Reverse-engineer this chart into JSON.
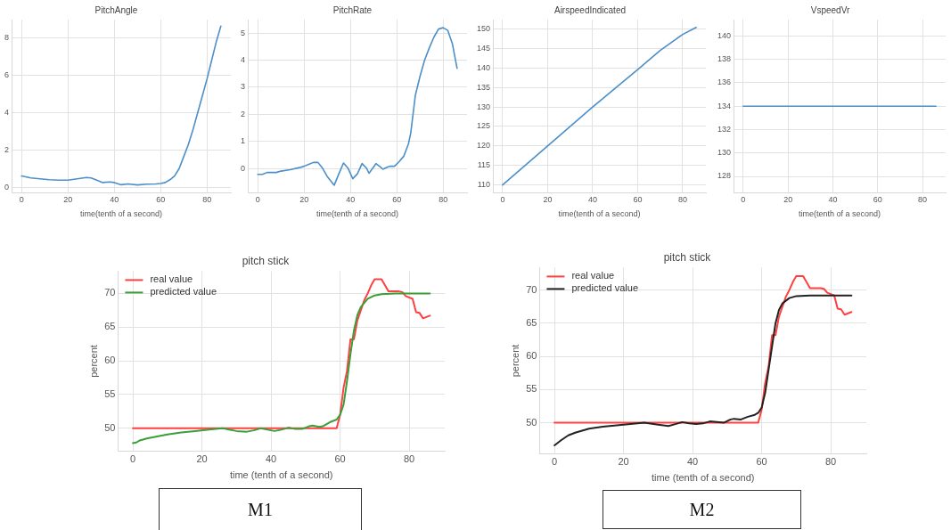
{
  "chart_data": [
    {
      "type": "line",
      "title": "PitchAngle",
      "xlabel": "time(tenth of a second)",
      "xlim": [
        -4.3,
        90.3
      ],
      "xticks": [
        0,
        20,
        40,
        60,
        80
      ],
      "ylim": [
        -0.3,
        9.0
      ],
      "yticks": [
        0,
        2,
        4,
        6,
        8
      ],
      "grid": true,
      "marker": "none",
      "line_style": "solid",
      "series": [
        {
          "color": "#4c8fc9",
          "x": [
            0,
            4,
            8,
            12,
            16,
            20,
            24,
            28,
            30,
            32,
            35,
            38,
            40,
            43,
            46,
            50,
            54,
            58,
            60,
            62,
            64,
            66,
            68,
            70,
            72,
            74,
            76,
            78,
            80,
            82,
            84,
            86
          ],
          "values": [
            0.6,
            0.5,
            0.45,
            0.4,
            0.38,
            0.38,
            0.45,
            0.52,
            0.5,
            0.4,
            0.25,
            0.28,
            0.25,
            0.13,
            0.17,
            0.12,
            0.16,
            0.17,
            0.2,
            0.25,
            0.4,
            0.6,
            1.0,
            1.65,
            2.3,
            3.1,
            4.0,
            4.9,
            5.8,
            6.8,
            7.8,
            8.65
          ]
        }
      ]
    },
    {
      "type": "line",
      "title": "PitchRate",
      "xlabel": "time(tenth of a second)",
      "xlim": [
        -4.3,
        90.3
      ],
      "xticks": [
        0,
        20,
        40,
        60,
        80
      ],
      "ylim": [
        -0.9,
        5.5
      ],
      "yticks": [
        0,
        1,
        2,
        3,
        4,
        5
      ],
      "grid": true,
      "marker": "none",
      "line_style": "solid",
      "series": [
        {
          "color": "#4c8fc9",
          "x": [
            0,
            2,
            4,
            6,
            8,
            10,
            14,
            18,
            20,
            22,
            24,
            26,
            28,
            30,
            33,
            35,
            37,
            39,
            41,
            43,
            45,
            47,
            48,
            50,
            51,
            53,
            54,
            56,
            57,
            59,
            61,
            63,
            65,
            66,
            67,
            68,
            70,
            72,
            74,
            76,
            78,
            80,
            82,
            84,
            86
          ],
          "values": [
            -0.22,
            -0.22,
            -0.15,
            -0.15,
            -0.15,
            -0.1,
            -0.05,
            0.03,
            0.08,
            0.15,
            0.22,
            0.22,
            0.0,
            -0.3,
            -0.62,
            -0.2,
            0.2,
            0.0,
            -0.38,
            -0.2,
            0.18,
            0.0,
            -0.18,
            0.05,
            0.18,
            0.05,
            -0.03,
            0.05,
            0.08,
            0.08,
            0.25,
            0.45,
            0.9,
            1.3,
            2.0,
            2.7,
            3.4,
            4.0,
            4.45,
            4.85,
            5.15,
            5.2,
            5.1,
            4.6,
            3.7
          ]
        }
      ]
    },
    {
      "type": "line",
      "title": "AirspeedIndicated",
      "xlabel": "time(tenth of a second)",
      "xlim": [
        -4.3,
        90.3
      ],
      "xticks": [
        0,
        20,
        40,
        60,
        80
      ],
      "ylim": [
        108,
        152.4
      ],
      "yticks": [
        110,
        115,
        120,
        125,
        130,
        135,
        140,
        145,
        150
      ],
      "grid": true,
      "marker": "none",
      "line_style": "solid",
      "series": [
        {
          "color": "#4c8fc9",
          "x": [
            0,
            20,
            40,
            60,
            70,
            80,
            86
          ],
          "values": [
            110,
            120,
            130,
            139.6,
            144.5,
            148.6,
            150.4
          ]
        }
      ]
    },
    {
      "type": "line",
      "title": "VspeedVr",
      "xlabel": "time(tenth of a second)",
      "xlim": [
        -4.3,
        90.3
      ],
      "xticks": [
        0,
        20,
        40,
        60,
        80
      ],
      "ylim": [
        126.6,
        141.4
      ],
      "yticks": [
        128,
        130,
        132,
        134,
        136,
        138,
        140
      ],
      "grid": true,
      "marker": "none",
      "line_style": "solid",
      "series": [
        {
          "color": "#4c8fc9",
          "x": [
            0,
            86
          ],
          "values": [
            134,
            134
          ]
        }
      ]
    },
    {
      "type": "line",
      "title": "pitch stick",
      "xlabel": "time (tenth of a second)",
      "ylabel": "percent",
      "xlim": [
        -4.3,
        90.3
      ],
      "xticks": [
        0,
        20,
        40,
        60,
        80
      ],
      "ylim": [
        46.6,
        73.3
      ],
      "yticks": [
        50,
        55,
        60,
        65,
        70
      ],
      "grid": true,
      "marker": "none",
      "line_style": "solid",
      "legend": "top left",
      "annotations": [
        "M1"
      ],
      "series": [
        {
          "name": "real value",
          "color": "#ff4040",
          "x": [
            0,
            59,
            60,
            61,
            62,
            63,
            64,
            65,
            66,
            67,
            68,
            69,
            70,
            72,
            74,
            77,
            78,
            79,
            81,
            82,
            83,
            84,
            86
          ],
          "values": [
            50,
            50,
            52,
            56,
            58.5,
            63.2,
            63.2,
            66,
            67.5,
            69,
            70,
            71.2,
            72.1,
            72.1,
            70.3,
            70.3,
            70.2,
            69.6,
            69.2,
            67.2,
            67.1,
            66.3,
            66.7
          ]
        },
        {
          "name": "predicted value",
          "color": "#3a9e3a",
          "x": [
            0,
            1,
            2,
            4,
            6,
            8,
            10,
            14,
            18,
            22,
            26,
            30,
            33,
            35,
            37,
            39,
            41,
            43,
            45,
            47,
            49,
            51,
            52,
            54,
            55,
            57,
            59,
            60,
            61,
            62,
            63,
            64,
            65,
            66,
            68,
            70,
            72,
            76,
            86
          ],
          "values": [
            47.8,
            47.9,
            48.2,
            48.5,
            48.7,
            48.9,
            49.1,
            49.4,
            49.6,
            49.8,
            50.0,
            49.6,
            49.5,
            49.7,
            50.0,
            49.8,
            49.6,
            49.8,
            50.1,
            49.9,
            49.9,
            50.3,
            50.4,
            50.2,
            50.3,
            50.9,
            51.3,
            52,
            53.5,
            57,
            61,
            64.5,
            66.8,
            68,
            69.2,
            69.7,
            69.9,
            70,
            70
          ]
        }
      ]
    },
    {
      "type": "line",
      "title": "pitch stick",
      "xlabel": "time (tenth of a second)",
      "ylabel": "percent",
      "xlim": [
        -4.3,
        90.3
      ],
      "xticks": [
        0,
        20,
        40,
        60,
        80
      ],
      "ylim": [
        45.3,
        73.4
      ],
      "yticks": [
        50,
        55,
        60,
        65,
        70
      ],
      "grid": true,
      "marker": "none",
      "line_style": "solid",
      "legend": "top left",
      "annotations": [
        "M2"
      ],
      "series": [
        {
          "name": "real value",
          "color": "#ff4040",
          "x": [
            0,
            59,
            60,
            61,
            62,
            63,
            64,
            65,
            66,
            67,
            68,
            69,
            70,
            72,
            74,
            77,
            78,
            79,
            81,
            82,
            83,
            84,
            86
          ],
          "values": [
            50,
            50,
            52,
            56,
            58.5,
            63.2,
            63.2,
            66,
            67.5,
            69,
            70,
            71.2,
            72.1,
            72.1,
            70.3,
            70.3,
            70.2,
            69.6,
            69.2,
            67.2,
            67.1,
            66.3,
            66.7
          ]
        },
        {
          "name": "predicted value",
          "color": "#222222",
          "x": [
            0,
            2,
            4,
            6,
            8,
            10,
            14,
            18,
            22,
            26,
            30,
            33,
            35,
            37,
            39,
            41,
            43,
            45,
            47,
            49,
            51,
            52,
            54,
            56,
            58,
            59,
            60,
            61,
            62,
            63,
            64,
            65,
            66,
            68,
            70,
            74,
            86
          ],
          "values": [
            46.6,
            47.4,
            48.1,
            48.5,
            48.8,
            49.1,
            49.4,
            49.6,
            49.8,
            50.0,
            49.7,
            49.5,
            49.8,
            50.1,
            49.9,
            49.8,
            49.9,
            50.2,
            50.1,
            50.0,
            50.5,
            50.6,
            50.5,
            50.9,
            51.2,
            51.5,
            52.3,
            54.5,
            58,
            61.5,
            65,
            67,
            68,
            68.8,
            69.1,
            69.2,
            69.2
          ]
        }
      ]
    }
  ]
}
